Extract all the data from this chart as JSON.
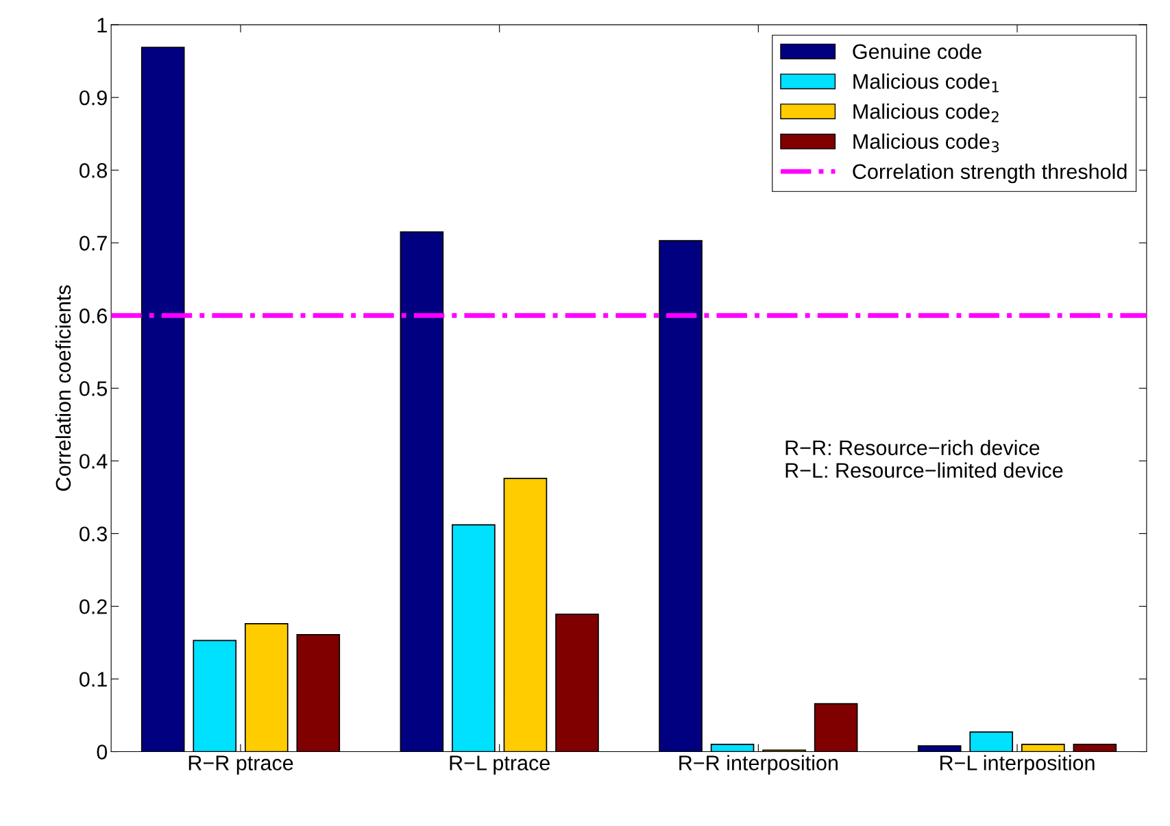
{
  "chart_data": {
    "type": "bar",
    "ylabel": "Correlation coeficients",
    "categories": [
      "R−R ptrace",
      "R−L ptrace",
      "R−R interposition",
      "R−L interposition"
    ],
    "series": [
      {
        "name": "Genuine code",
        "color": "#000080",
        "values": [
          0.969,
          0.715,
          0.703,
          0.008
        ]
      },
      {
        "name": "Malicious code$_{1}$",
        "color": "#00e0ff",
        "values": [
          0.153,
          0.312,
          0.01,
          0.027
        ]
      },
      {
        "name": "Malicious code$_{2}$",
        "color": "#ffcc00",
        "values": [
          0.176,
          0.376,
          0.002,
          0.01
        ]
      },
      {
        "name": "Malicious code$_{3}$",
        "color": "#800000",
        "values": [
          0.161,
          0.189,
          0.066,
          0.01
        ]
      }
    ],
    "ref_lines": [
      {
        "axis": "y",
        "value": 0.6,
        "label": "Correlation strength threshold",
        "color": "#ff00ff",
        "line_style": "dashdot"
      }
    ],
    "annotations": [
      "R−R: Resource−rich device\nR−L: Resource−limited device"
    ],
    "ylim": [
      0,
      1
    ],
    "yticks": [
      0,
      0.1,
      0.2,
      0.3,
      0.4,
      0.5,
      0.6,
      0.7,
      0.8,
      0.9,
      1
    ],
    "legend": "top right",
    "grid": false
  }
}
